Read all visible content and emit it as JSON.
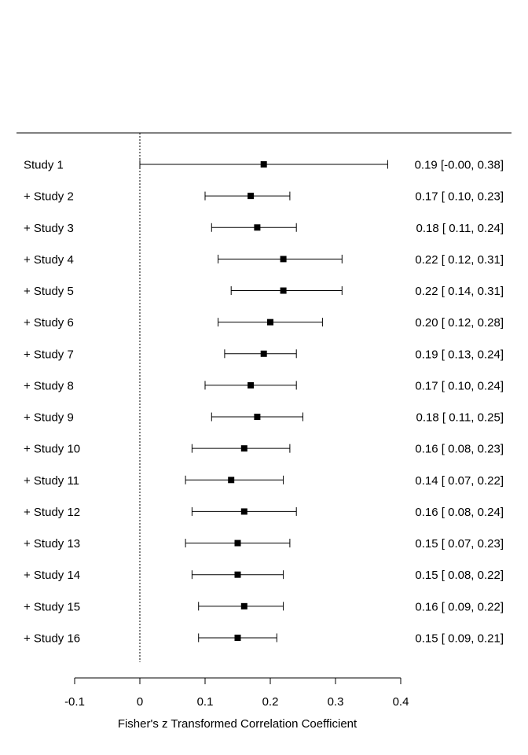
{
  "chart_data": {
    "type": "forest",
    "subtype": "cumulative meta-analysis",
    "xlabel": "Fisher's z Transformed Correlation Coefficient",
    "xlim": [
      -0.1,
      0.4
    ],
    "x_ticks": [
      -0.1,
      0,
      0.1,
      0.2,
      0.3,
      0.4
    ],
    "x_tick_labels": [
      "-0.1",
      "0",
      "0.1",
      "0.2",
      "0.3",
      "0.4"
    ],
    "reference_line": 0,
    "rows": [
      {
        "label": "Study 1",
        "estimate": 0.19,
        "ci_lower": -0.0,
        "ci_upper": 0.38,
        "text": "0.19 [-0.00, 0.38]"
      },
      {
        "label": "+ Study 2",
        "estimate": 0.17,
        "ci_lower": 0.1,
        "ci_upper": 0.23,
        "text": "0.17 [ 0.10, 0.23]"
      },
      {
        "label": "+ Study 3",
        "estimate": 0.18,
        "ci_lower": 0.11,
        "ci_upper": 0.24,
        "text": "0.18 [ 0.11, 0.24]"
      },
      {
        "label": "+ Study 4",
        "estimate": 0.22,
        "ci_lower": 0.12,
        "ci_upper": 0.31,
        "text": "0.22 [ 0.12, 0.31]"
      },
      {
        "label": "+ Study 5",
        "estimate": 0.22,
        "ci_lower": 0.14,
        "ci_upper": 0.31,
        "text": "0.22 [ 0.14, 0.31]"
      },
      {
        "label": "+ Study 6",
        "estimate": 0.2,
        "ci_lower": 0.12,
        "ci_upper": 0.28,
        "text": "0.20 [ 0.12, 0.28]"
      },
      {
        "label": "+ Study 7",
        "estimate": 0.19,
        "ci_lower": 0.13,
        "ci_upper": 0.24,
        "text": "0.19 [ 0.13, 0.24]"
      },
      {
        "label": "+ Study 8",
        "estimate": 0.17,
        "ci_lower": 0.1,
        "ci_upper": 0.24,
        "text": "0.17 [ 0.10, 0.24]"
      },
      {
        "label": "+ Study 9",
        "estimate": 0.18,
        "ci_lower": 0.11,
        "ci_upper": 0.25,
        "text": "0.18 [ 0.11, 0.25]"
      },
      {
        "label": "+ Study 10",
        "estimate": 0.16,
        "ci_lower": 0.08,
        "ci_upper": 0.23,
        "text": "0.16 [ 0.08, 0.23]"
      },
      {
        "label": "+ Study 11",
        "estimate": 0.14,
        "ci_lower": 0.07,
        "ci_upper": 0.22,
        "text": "0.14 [ 0.07, 0.22]"
      },
      {
        "label": "+ Study 12",
        "estimate": 0.16,
        "ci_lower": 0.08,
        "ci_upper": 0.24,
        "text": "0.16 [ 0.08, 0.24]"
      },
      {
        "label": "+ Study 13",
        "estimate": 0.15,
        "ci_lower": 0.07,
        "ci_upper": 0.23,
        "text": "0.15 [ 0.07, 0.23]"
      },
      {
        "label": "+ Study 14",
        "estimate": 0.15,
        "ci_lower": 0.08,
        "ci_upper": 0.22,
        "text": "0.15 [ 0.08, 0.22]"
      },
      {
        "label": "+ Study 15",
        "estimate": 0.16,
        "ci_lower": 0.09,
        "ci_upper": 0.22,
        "text": "0.16 [ 0.09, 0.22]"
      },
      {
        "label": "+ Study 16",
        "estimate": 0.15,
        "ci_lower": 0.09,
        "ci_upper": 0.21,
        "text": "0.15 [ 0.09, 0.21]"
      }
    ]
  }
}
